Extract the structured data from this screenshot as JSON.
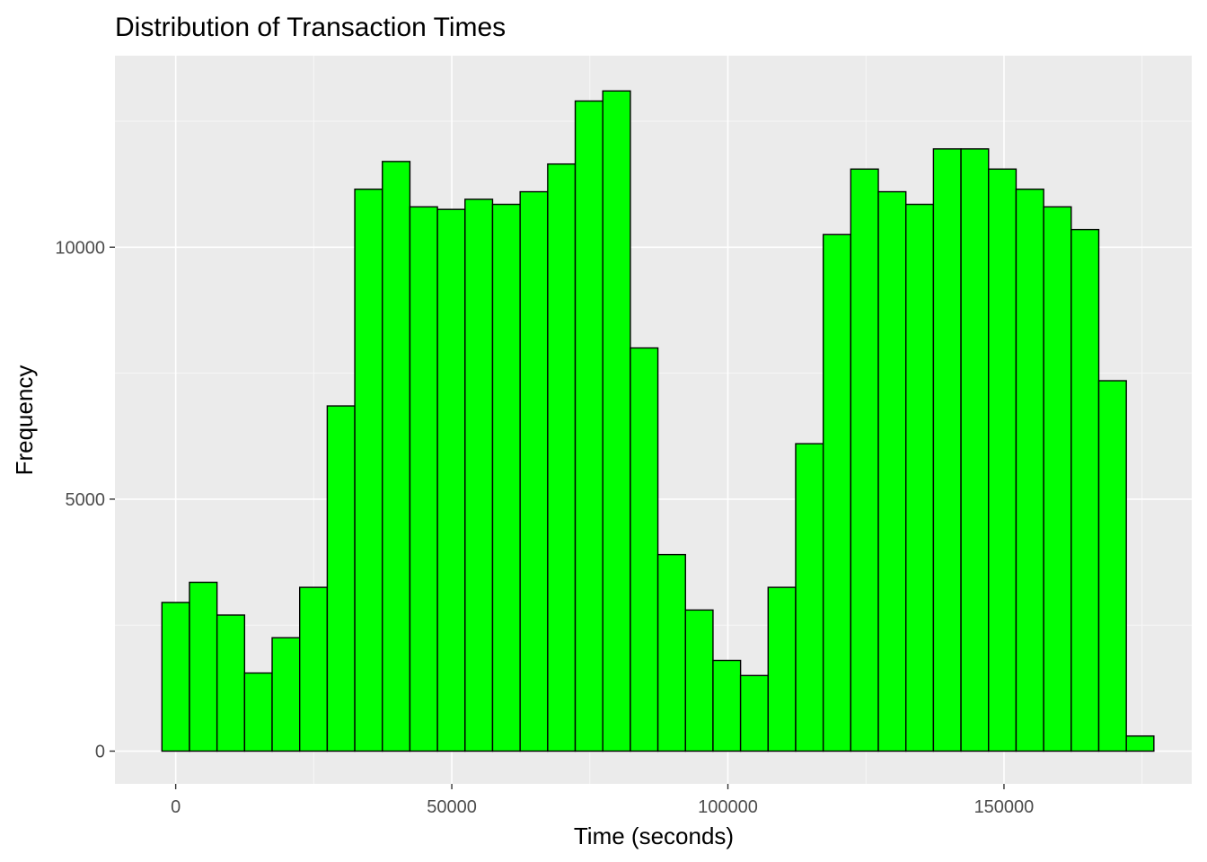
{
  "chart_data": {
    "type": "bar",
    "title": "Distribution of Transaction Times",
    "xlabel": "Time (seconds)",
    "ylabel": "Frequency",
    "xlim": [
      -11000,
      184000
    ],
    "ylim": [
      -650,
      13800
    ],
    "x_ticks": [
      0,
      50000,
      100000,
      150000
    ],
    "x_tick_labels": [
      "0",
      "50000",
      "100000",
      "150000"
    ],
    "y_ticks": [
      0,
      5000,
      10000
    ],
    "y_tick_labels": [
      "0",
      "5000",
      "10000"
    ],
    "bin_width": 4990,
    "bin_start": -2495,
    "grid": true,
    "values": [
      2950,
      3350,
      2700,
      1550,
      2250,
      3250,
      6850,
      11150,
      11700,
      10800,
      10750,
      10950,
      10850,
      11100,
      11650,
      12900,
      13100,
      8000,
      3900,
      2800,
      1800,
      1500,
      3250,
      6100,
      10250,
      11550,
      11100,
      10850,
      11950,
      11950,
      11550,
      11150,
      10800,
      10350,
      7350,
      300
    ],
    "colors": {
      "bar_fill": "#00FF00",
      "bar_stroke": "#000000",
      "panel_background": "#EBEBEB",
      "grid_major": "#FFFFFF",
      "grid_minor": "#F7F7F7"
    }
  }
}
